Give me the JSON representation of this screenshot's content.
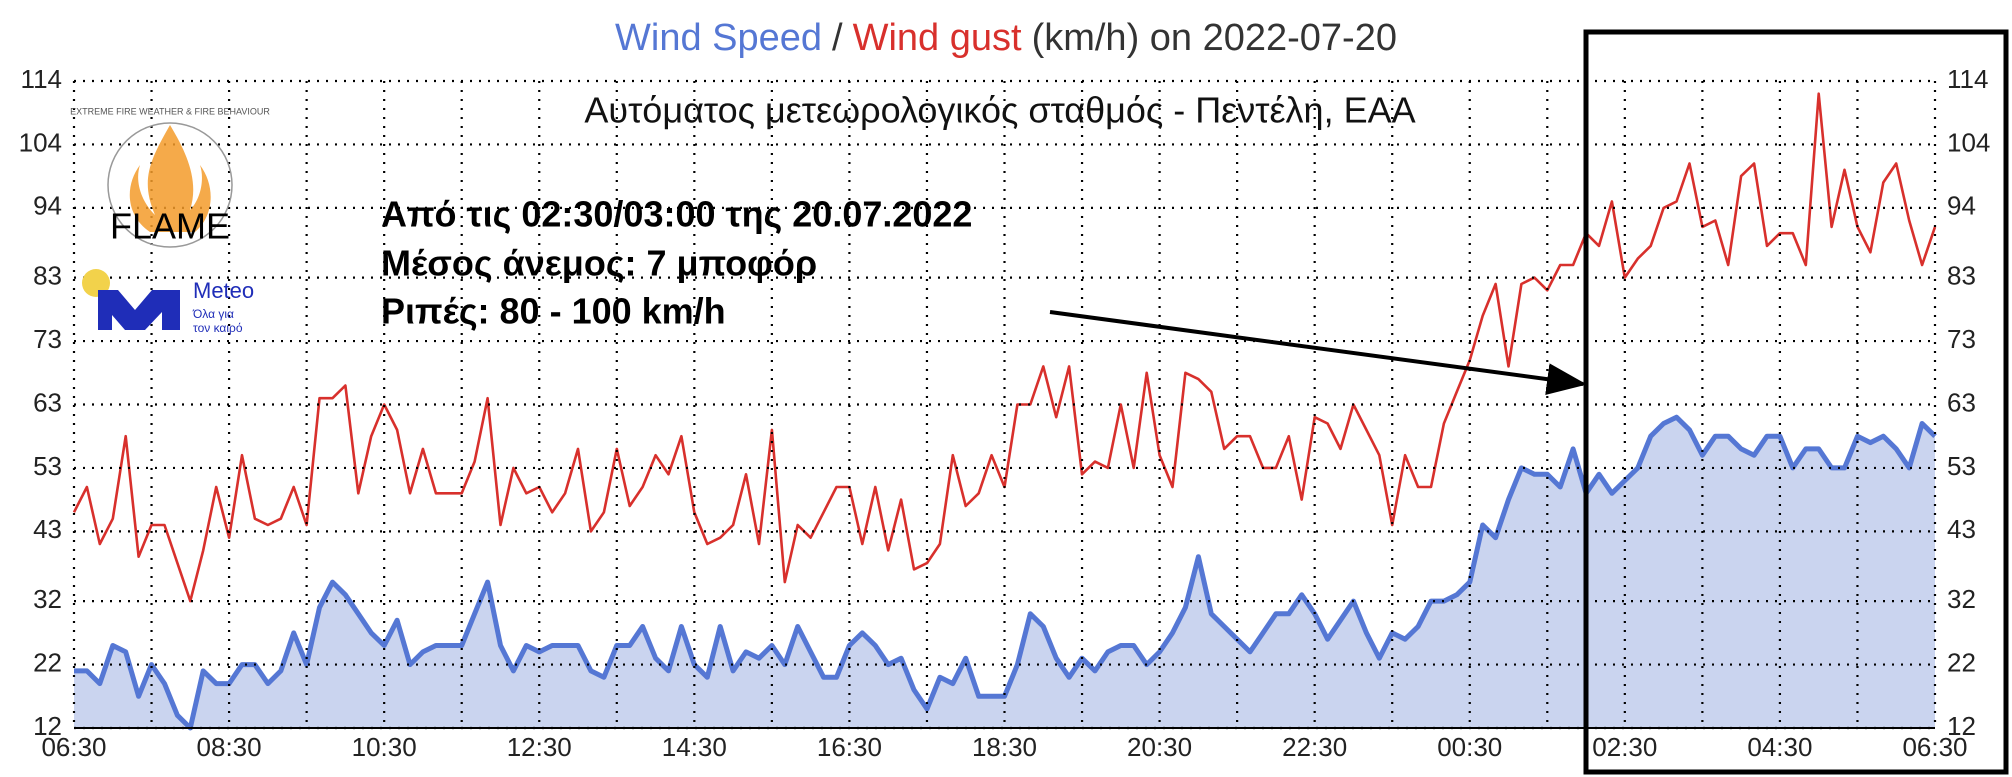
{
  "chart_data": {
    "type": "line",
    "title_suffix": "(km/h) on 2022-07-20",
    "title_separator": "/",
    "subtitle": "Αυτόματος μετεωρολογικός σταθμός - Πεντέλη, ΕΑΑ",
    "annotation": [
      "Από τις 02:30/03:00 της 20.07.2022",
      "Μέσος άνεμος: 7 μποφόρ",
      "Ριπές: 80 - 100 km/h"
    ],
    "logos": {
      "flame": "FLAME",
      "flame_ring": "EXTREME FIRE WEATHER & FIRE BEHAVIOUR",
      "meteo": "Meteo",
      "meteo_tagline": [
        "Όλα για",
        "τον καιρό"
      ]
    },
    "categories": [
      "06:30",
      null,
      null,
      null,
      null,
      null,
      null,
      null,
      null,
      null,
      null,
      null,
      "08:30",
      null,
      null,
      null,
      null,
      null,
      null,
      null,
      null,
      null,
      null,
      null,
      "10:30",
      null,
      null,
      null,
      null,
      null,
      null,
      null,
      null,
      null,
      null,
      null,
      "12:30",
      null,
      null,
      null,
      null,
      null,
      null,
      null,
      null,
      null,
      null,
      null,
      "14:30",
      null,
      null,
      null,
      null,
      null,
      null,
      null,
      null,
      null,
      null,
      null,
      "16:30",
      null,
      null,
      null,
      null,
      null,
      null,
      null,
      null,
      null,
      null,
      null,
      "18:30",
      null,
      null,
      null,
      null,
      null,
      null,
      null,
      null,
      null,
      null,
      null,
      "20:30",
      null,
      null,
      null,
      null,
      null,
      null,
      null,
      null,
      null,
      null,
      null,
      "22:30",
      null,
      null,
      null,
      null,
      null,
      null,
      null,
      null,
      null,
      null,
      null,
      "00:30",
      null,
      null,
      null,
      null,
      null,
      null,
      null,
      null,
      null,
      null,
      null,
      "02:30",
      null,
      null,
      null,
      null,
      null,
      null,
      null,
      null,
      null,
      null,
      null,
      "04:30",
      null,
      null,
      null,
      null,
      null,
      null,
      null,
      null,
      null,
      null,
      null,
      "06:30"
    ],
    "series": [
      {
        "name": "Wind Speed",
        "color": "#5577d4",
        "fill": "#cad4ef",
        "area": true,
        "values": [
          21,
          21,
          19,
          25,
          24,
          17,
          22,
          19,
          14,
          12,
          21,
          19,
          19,
          22,
          22,
          19,
          21,
          27,
          22,
          31,
          35,
          33,
          30,
          27,
          25,
          29,
          22,
          24,
          25,
          25,
          25,
          30,
          35,
          25,
          21,
          25,
          24,
          25,
          25,
          25,
          21,
          20,
          25,
          25,
          28,
          23,
          21,
          28,
          22,
          20,
          28,
          21,
          24,
          23,
          25,
          22,
          28,
          24,
          20,
          20,
          25,
          27,
          25,
          22,
          23,
          18,
          15,
          20,
          19,
          23,
          17,
          17,
          17,
          22,
          30,
          28,
          23,
          20,
          23,
          21,
          24,
          25,
          25,
          22,
          24,
          27,
          31,
          39,
          30,
          28,
          26,
          24,
          27,
          30,
          30,
          33,
          30,
          26,
          29,
          32,
          27,
          23,
          27,
          26,
          28,
          32,
          32,
          33,
          35,
          44,
          42,
          48,
          53,
          52,
          52,
          50,
          56,
          49,
          52,
          49,
          51,
          53,
          58,
          60,
          61,
          59,
          55,
          58,
          58,
          56,
          55,
          58,
          58,
          53,
          56,
          56,
          53,
          53,
          58,
          57,
          58,
          56,
          53,
          60,
          58
        ]
      },
      {
        "name": "Wind gust",
        "color": "#d8302c",
        "area": false,
        "values": [
          46,
          50,
          41,
          45,
          58,
          39,
          44,
          44,
          38,
          32,
          40,
          50,
          42,
          55,
          45,
          44,
          45,
          50,
          44,
          64,
          64,
          66,
          49,
          58,
          63,
          59,
          49,
          56,
          49,
          49,
          49,
          54,
          64,
          44,
          53,
          49,
          50,
          46,
          49,
          56,
          43,
          46,
          56,
          47,
          50,
          55,
          52,
          58,
          46,
          41,
          42,
          44,
          52,
          41,
          59,
          35,
          44,
          42,
          46,
          50,
          50,
          41,
          50,
          40,
          48,
          37,
          38,
          41,
          55,
          47,
          49,
          55,
          50,
          63,
          63,
          69,
          61,
          69,
          52,
          54,
          53,
          63,
          53,
          68,
          55,
          50,
          68,
          67,
          65,
          56,
          58,
          58,
          53,
          53,
          58,
          48,
          61,
          60,
          56,
          63,
          59,
          55,
          44,
          55,
          50,
          50,
          60,
          65,
          70,
          77,
          82,
          69,
          82,
          83,
          81,
          85,
          85,
          90,
          88,
          95,
          83,
          86,
          88,
          94,
          95,
          101,
          91,
          92,
          85,
          99,
          101,
          88,
          90,
          90,
          85,
          112,
          91,
          100,
          91,
          87,
          98,
          101,
          92,
          85,
          91
        ]
      }
    ],
    "ylim": [
      12,
      114
    ],
    "yticks": [
      12,
      22,
      32,
      43,
      53,
      63,
      73,
      83,
      94,
      104,
      114
    ],
    "grid": true
  }
}
